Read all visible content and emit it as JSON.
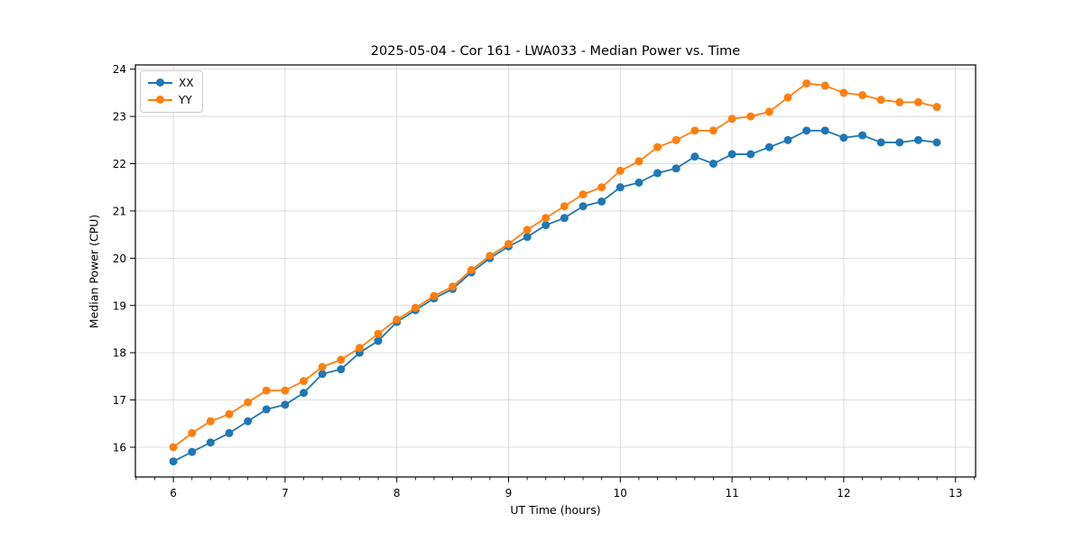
{
  "figure": {
    "background": "#ffffff"
  },
  "chart_data": {
    "type": "line",
    "title": "2025-05-04 - Cor 161 - LWA033 - Median Power vs. Time",
    "xlabel": "UT Time (hours)",
    "ylabel": "Median Power (CPU)",
    "xlim": [
      5.66,
      13.18
    ],
    "ylim": [
      15.37,
      24.09
    ],
    "xticks": [
      6,
      7,
      8,
      9,
      10,
      11,
      12,
      13
    ],
    "yticks": [
      16,
      17,
      18,
      19,
      20,
      21,
      22,
      23,
      24
    ],
    "x_minor_divisions": 6,
    "grid": true,
    "grid_color": "#d9d9d9",
    "frame_color": "#000000",
    "legend_position": "upper-left",
    "marker": "o",
    "x": [
      6.0,
      6.167,
      6.333,
      6.5,
      6.667,
      6.833,
      7.0,
      7.167,
      7.333,
      7.5,
      7.667,
      7.833,
      8.0,
      8.167,
      8.333,
      8.5,
      8.667,
      8.833,
      9.0,
      9.167,
      9.333,
      9.5,
      9.667,
      9.833,
      10.0,
      10.167,
      10.333,
      10.5,
      10.667,
      10.833,
      11.0,
      11.167,
      11.333,
      11.5,
      11.667,
      11.833,
      12.0,
      12.167,
      12.333,
      12.5,
      12.667,
      12.833
    ],
    "series": [
      {
        "name": "XX",
        "color": "#1f77b4",
        "values": [
          15.7,
          15.9,
          16.1,
          16.3,
          16.55,
          16.8,
          16.9,
          17.15,
          17.55,
          17.65,
          18.0,
          18.25,
          18.65,
          18.9,
          19.15,
          19.35,
          19.7,
          20.0,
          20.25,
          20.45,
          20.7,
          20.85,
          21.1,
          21.2,
          21.5,
          21.6,
          21.8,
          21.9,
          22.15,
          22.0,
          22.2,
          22.2,
          22.35,
          22.5,
          22.7,
          22.7,
          22.55,
          22.6,
          22.45,
          22.45,
          22.5,
          22.45
        ]
      },
      {
        "name": "YY",
        "color": "#ff7f0e",
        "values": [
          16.0,
          16.3,
          16.55,
          16.7,
          16.95,
          17.2,
          17.2,
          17.4,
          17.7,
          17.85,
          18.1,
          18.4,
          18.7,
          18.95,
          19.2,
          19.4,
          19.75,
          20.05,
          20.3,
          20.6,
          20.85,
          21.1,
          21.35,
          21.5,
          21.85,
          22.05,
          22.35,
          22.5,
          22.7,
          22.7,
          22.95,
          23.0,
          23.1,
          23.4,
          23.7,
          23.65,
          23.5,
          23.45,
          23.35,
          23.3,
          23.3,
          23.2
        ]
      }
    ]
  }
}
